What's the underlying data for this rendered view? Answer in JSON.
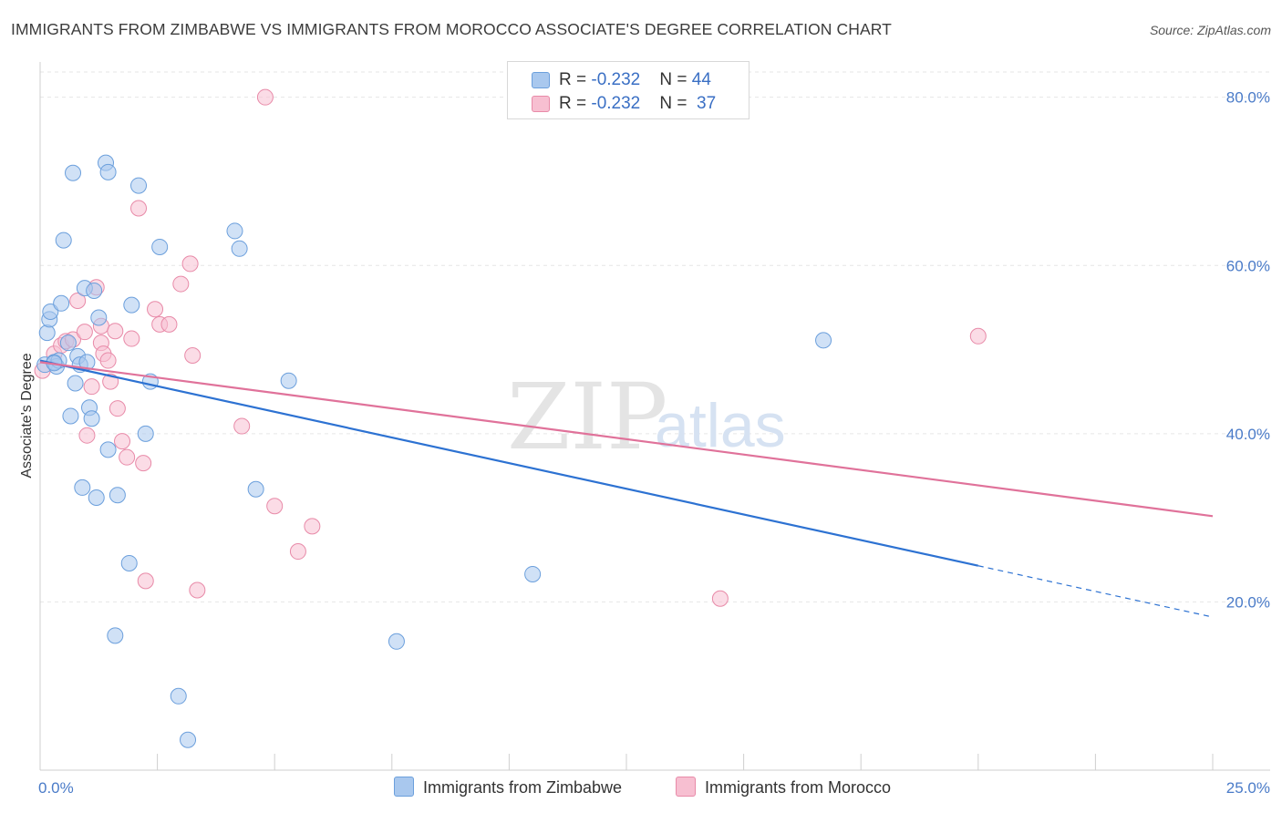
{
  "title": "IMMIGRANTS FROM ZIMBABWE VS IMMIGRANTS FROM MOROCCO ASSOCIATE'S DEGREE CORRELATION CHART",
  "source": "Source: ZipAtlas.com",
  "watermark": {
    "zip": "ZIP",
    "atlas": "atlas"
  },
  "colors": {
    "zimbabwe_fill": "#a9c8ee",
    "zimbabwe_stroke": "#6b9fdc",
    "zimbabwe_line": "#2d72d2",
    "morocco_fill": "#f7bfd1",
    "morocco_stroke": "#e88aa8",
    "morocco_line": "#e0729a",
    "tick_label": "#4a7bc8",
    "grid": "#e6e6e6"
  },
  "legend": {
    "rows": [
      {
        "series": "zimbabwe",
        "r_label": "R = ",
        "r_value": "-0.232",
        "n_label": "N = ",
        "n_value": "44"
      },
      {
        "series": "morocco",
        "r_label": "R = ",
        "r_value": "-0.232",
        "n_label": "N = ",
        "n_value": "37"
      }
    ]
  },
  "chart_data": {
    "type": "scatter",
    "title": "IMMIGRANTS FROM ZIMBABWE VS IMMIGRANTS FROM MOROCCO ASSOCIATE'S DEGREE CORRELATION CHART",
    "xlabel": "",
    "ylabel": "Associate's Degree",
    "xlim": [
      0,
      25
    ],
    "ylim": [
      0,
      83
    ],
    "x_tick_labels": [
      "0.0%",
      "25.0%"
    ],
    "y_ticks": [
      20,
      40,
      60,
      80
    ],
    "y_tick_labels": [
      "20.0%",
      "40.0%",
      "60.0%",
      "80.0%"
    ],
    "grid": true,
    "series": [
      {
        "name": "Immigrants from Zimbabwe",
        "key": "zimbabwe",
        "points": [
          [
            0.1,
            48.2
          ],
          [
            0.15,
            52.0
          ],
          [
            0.2,
            53.6
          ],
          [
            0.22,
            54.5
          ],
          [
            0.3,
            48.5
          ],
          [
            0.35,
            48.0
          ],
          [
            0.4,
            48.7
          ],
          [
            0.45,
            55.5
          ],
          [
            0.5,
            63.0
          ],
          [
            0.6,
            50.8
          ],
          [
            0.65,
            42.1
          ],
          [
            0.7,
            71.0
          ],
          [
            0.75,
            46.0
          ],
          [
            0.8,
            49.2
          ],
          [
            0.85,
            48.2
          ],
          [
            0.9,
            33.6
          ],
          [
            0.95,
            57.3
          ],
          [
            1.0,
            48.5
          ],
          [
            1.05,
            43.1
          ],
          [
            1.1,
            41.8
          ],
          [
            1.15,
            57.0
          ],
          [
            1.2,
            32.4
          ],
          [
            1.25,
            53.8
          ],
          [
            1.4,
            72.2
          ],
          [
            1.45,
            71.1
          ],
          [
            1.45,
            38.1
          ],
          [
            1.6,
            16.0
          ],
          [
            1.65,
            32.7
          ],
          [
            1.9,
            24.6
          ],
          [
            1.95,
            55.3
          ],
          [
            2.1,
            69.5
          ],
          [
            2.25,
            40.0
          ],
          [
            2.35,
            46.2
          ],
          [
            2.55,
            62.2
          ],
          [
            2.95,
            8.8
          ],
          [
            3.15,
            3.6
          ],
          [
            4.15,
            64.1
          ],
          [
            4.25,
            62.0
          ],
          [
            4.6,
            33.4
          ],
          [
            5.3,
            46.3
          ],
          [
            7.6,
            15.3
          ],
          [
            10.5,
            23.3
          ],
          [
            16.7,
            51.1
          ],
          [
            0.3,
            48.4
          ]
        ]
      },
      {
        "name": "Immigrants from Morocco",
        "key": "morocco",
        "points": [
          [
            0.05,
            47.5
          ],
          [
            0.3,
            49.5
          ],
          [
            0.45,
            50.5
          ],
          [
            0.55,
            51.0
          ],
          [
            0.7,
            51.2
          ],
          [
            0.8,
            55.8
          ],
          [
            0.95,
            52.1
          ],
          [
            1.0,
            39.8
          ],
          [
            1.1,
            45.6
          ],
          [
            1.2,
            57.4
          ],
          [
            1.3,
            52.8
          ],
          [
            1.3,
            50.8
          ],
          [
            1.35,
            49.5
          ],
          [
            1.45,
            48.7
          ],
          [
            1.5,
            46.2
          ],
          [
            1.6,
            52.2
          ],
          [
            1.65,
            43.0
          ],
          [
            1.75,
            39.1
          ],
          [
            1.85,
            37.2
          ],
          [
            1.95,
            51.3
          ],
          [
            2.1,
            66.8
          ],
          [
            2.2,
            36.5
          ],
          [
            2.25,
            22.5
          ],
          [
            2.45,
            54.8
          ],
          [
            2.55,
            53.0
          ],
          [
            2.75,
            53.0
          ],
          [
            3.0,
            57.8
          ],
          [
            3.2,
            60.2
          ],
          [
            3.25,
            49.3
          ],
          [
            3.35,
            21.4
          ],
          [
            4.3,
            40.9
          ],
          [
            4.8,
            80.0
          ],
          [
            5.0,
            31.4
          ],
          [
            5.5,
            26.0
          ],
          [
            5.8,
            29.0
          ],
          [
            14.5,
            20.4
          ],
          [
            20.0,
            51.6
          ]
        ]
      }
    ],
    "trendlines": [
      {
        "series": "zimbabwe",
        "x_start": 0,
        "y_start": 48.7,
        "x_solid_end": 20.0,
        "y_solid_end": 24.3,
        "x_end": 25,
        "y_end": 18.2
      },
      {
        "series": "morocco",
        "x_start": 0,
        "y_start": 48.5,
        "x_end": 25,
        "y_end": 30.2
      }
    ]
  },
  "bottom_legend": [
    {
      "series": "zimbabwe",
      "label": "Immigrants from Zimbabwe"
    },
    {
      "series": "morocco",
      "label": "Immigrants from Morocco"
    }
  ]
}
